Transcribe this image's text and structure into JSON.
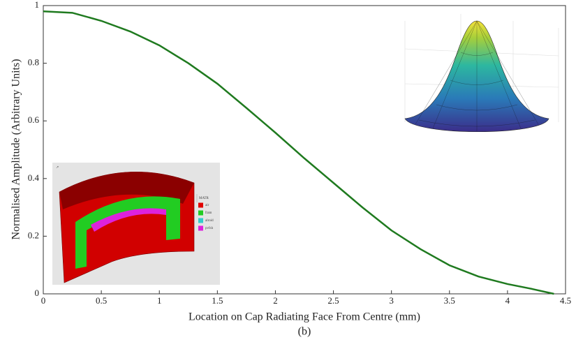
{
  "chart_data": {
    "type": "line",
    "x_label": "Location on Cap Radiating Face From Centre (mm)",
    "y_label": "Normalised Amplitude (Arbitrary Units)",
    "caption": "(b)",
    "x": [
      0,
      0.25,
      0.5,
      0.75,
      1,
      1.25,
      1.5,
      1.75,
      2,
      2.25,
      2.5,
      2.75,
      3,
      3.25,
      3.5,
      3.75,
      4,
      4.2,
      4.4
    ],
    "series": [
      {
        "color": "#1f7a1f",
        "values": [
          0.98,
          0.975,
          0.947,
          0.91,
          0.862,
          0.8,
          0.729,
          0.645,
          0.559,
          0.47,
          0.385,
          0.3,
          0.22,
          0.155,
          0.099,
          0.06,
          0.034,
          0.018,
          0.0
        ]
      }
    ],
    "xlim": [
      0,
      4.5
    ],
    "xticks": [
      0,
      0.5,
      1,
      1.5,
      2,
      2.5,
      3,
      3.5,
      4,
      4.5
    ],
    "ylim": [
      0,
      1
    ],
    "yticks": [
      0,
      0.2,
      0.4,
      0.6,
      0.8,
      1
    ],
    "grid": false,
    "model_legend": {
      "title": "MATR",
      "items": [
        {
          "label": "air",
          "color": "#e00000"
        },
        {
          "label": "fram",
          "color": "#22cc22"
        },
        {
          "label": "alroid",
          "color": "#33cccc"
        },
        {
          "label": "pvfsh",
          "color": "#dd22dd"
        }
      ]
    }
  }
}
